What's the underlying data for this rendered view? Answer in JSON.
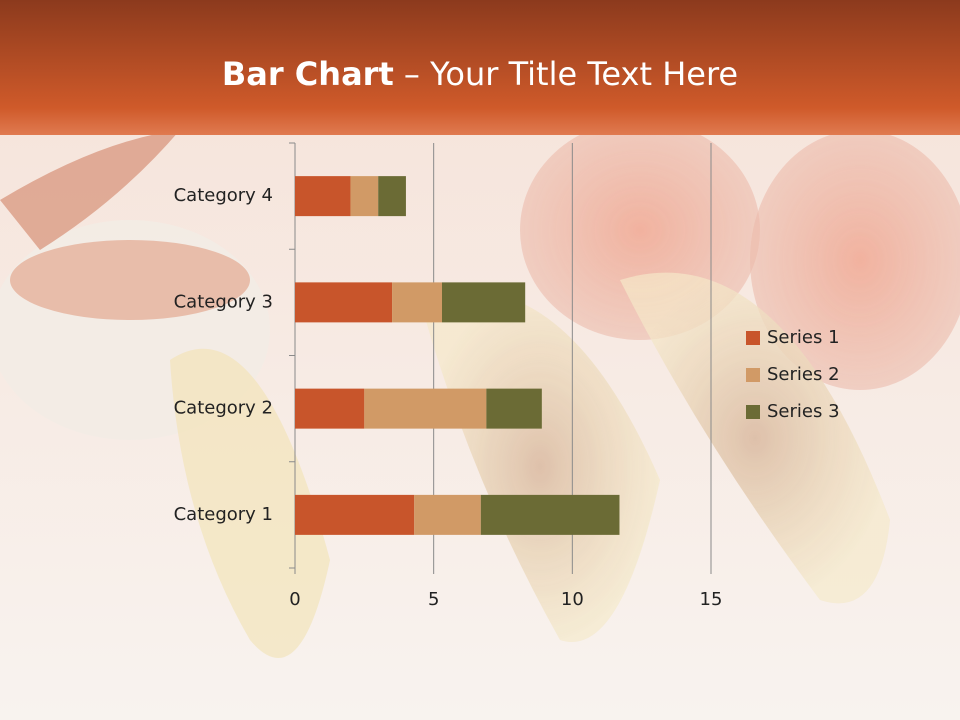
{
  "chart_data": {
    "type": "stacked-barh",
    "title": "Bar Chart",
    "subtitle": "– Your Title Text Here",
    "categories": [
      "Category 1",
      "Category 2",
      "Category 3",
      "Category 4"
    ],
    "series": [
      {
        "name": "Series 1",
        "color": "#c8552b",
        "values": [
          4.3,
          2.5,
          3.5,
          2.0
        ]
      },
      {
        "name": "Series 2",
        "color": "#d19a66",
        "values": [
          2.4,
          4.4,
          1.8,
          1.0
        ]
      },
      {
        "name": "Series 3",
        "color": "#6b6b35",
        "values": [
          5.0,
          2.0,
          3.0,
          1.0
        ]
      }
    ],
    "xlim": [
      0,
      15
    ],
    "xticks": [
      0,
      5,
      10,
      15
    ],
    "grid": true,
    "legend": "right"
  }
}
